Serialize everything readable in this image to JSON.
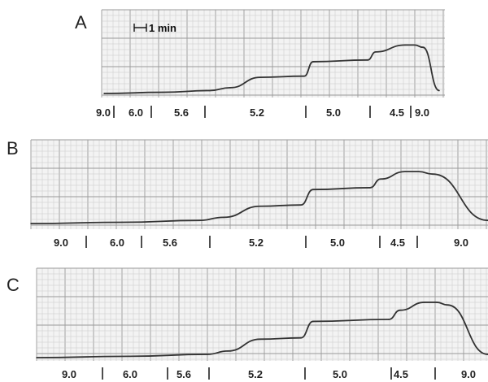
{
  "chart_data": [
    {
      "type": "line",
      "panel": "A",
      "scale_bar": "1 min",
      "ph_segments": [
        "9.0",
        "6.0",
        "5.6",
        "5.2",
        "5.0",
        "4.5",
        "9.0"
      ],
      "x": [
        0,
        1,
        2,
        3,
        4,
        5,
        6,
        7,
        8,
        9,
        10,
        11,
        12
      ],
      "y": [
        0,
        0.02,
        0.05,
        0.1,
        0.28,
        0.3,
        0.55,
        0.58,
        0.72,
        0.84,
        0.84,
        0.8,
        0.05
      ]
    },
    {
      "type": "line",
      "panel": "B",
      "ph_segments": [
        "9.0",
        "6.0",
        "5.6",
        "5.2",
        "5.0",
        "4.5",
        "9.0"
      ],
      "x": [
        0,
        1,
        2,
        3,
        4,
        5,
        6,
        7,
        8,
        9,
        10,
        11,
        12
      ],
      "y": [
        0,
        0.02,
        0.05,
        0.1,
        0.28,
        0.3,
        0.55,
        0.58,
        0.72,
        0.84,
        0.84,
        0.8,
        0.05
      ]
    },
    {
      "type": "line",
      "panel": "C",
      "ph_segments": [
        "9.0",
        "6.0",
        "5.6",
        "5.2",
        "5.0",
        "4.5",
        "9.0"
      ],
      "x": [
        0,
        1,
        2,
        3,
        4,
        5,
        6,
        7,
        8,
        9,
        10,
        11,
        12
      ],
      "y": [
        0,
        0.02,
        0.05,
        0.1,
        0.28,
        0.3,
        0.55,
        0.58,
        0.72,
        0.84,
        0.84,
        0.8,
        0.05
      ]
    }
  ]
}
